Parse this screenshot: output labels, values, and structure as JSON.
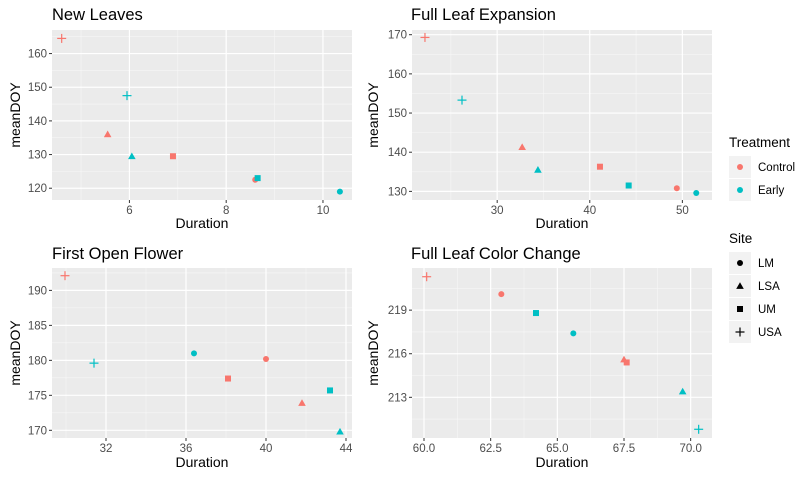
{
  "colors": {
    "Control": "#F8766D",
    "Early": "#00BFC4"
  },
  "legends": {
    "treatment": {
      "title": "Treatment",
      "items": [
        {
          "label": "Control",
          "color": "#F8766D"
        },
        {
          "label": "Early",
          "color": "#00BFC4"
        }
      ]
    },
    "site": {
      "title": "Site",
      "items": [
        {
          "label": "LM",
          "shape": "circle"
        },
        {
          "label": "LSA",
          "shape": "triangle"
        },
        {
          "label": "UM",
          "shape": "square"
        },
        {
          "label": "USA",
          "shape": "plus"
        }
      ]
    }
  },
  "chart_data": [
    {
      "type": "scatter",
      "title": "New Leaves",
      "xlabel": "Duration",
      "ylabel": "meanDOY",
      "xlim": [
        4.4,
        10.6
      ],
      "ylim": [
        116.5,
        167
      ],
      "xticks": [
        6,
        8,
        10
      ],
      "yticks": [
        120,
        130,
        140,
        150,
        160
      ],
      "points": [
        {
          "x": 4.6,
          "y": 164.5,
          "treatment": "Control",
          "site": "USA"
        },
        {
          "x": 5.55,
          "y": 136,
          "treatment": "Control",
          "site": "LSA"
        },
        {
          "x": 5.95,
          "y": 147.5,
          "treatment": "Early",
          "site": "USA"
        },
        {
          "x": 6.05,
          "y": 129.5,
          "treatment": "Early",
          "site": "LSA"
        },
        {
          "x": 6.9,
          "y": 129.5,
          "treatment": "Control",
          "site": "UM"
        },
        {
          "x": 8.6,
          "y": 122.5,
          "treatment": "Control",
          "site": "LM"
        },
        {
          "x": 8.65,
          "y": 123,
          "treatment": "Early",
          "site": "UM"
        },
        {
          "x": 10.35,
          "y": 119,
          "treatment": "Early",
          "site": "LM"
        }
      ]
    },
    {
      "type": "scatter",
      "title": "Full Leaf Expansion",
      "xlabel": "Duration",
      "ylabel": "meanDOY",
      "xlim": [
        20.8,
        53.2
      ],
      "ylim": [
        127.8,
        171.2
      ],
      "xticks": [
        30,
        40,
        50
      ],
      "yticks": [
        130,
        140,
        150,
        160,
        170
      ],
      "points": [
        {
          "x": 22.2,
          "y": 169.3,
          "treatment": "Control",
          "site": "USA"
        },
        {
          "x": 26.2,
          "y": 153.3,
          "treatment": "Early",
          "site": "USA"
        },
        {
          "x": 32.7,
          "y": 141.3,
          "treatment": "Control",
          "site": "LSA"
        },
        {
          "x": 34.4,
          "y": 135.5,
          "treatment": "Early",
          "site": "LSA"
        },
        {
          "x": 41.1,
          "y": 136.3,
          "treatment": "Control",
          "site": "UM"
        },
        {
          "x": 44.2,
          "y": 131.5,
          "treatment": "Early",
          "site": "UM"
        },
        {
          "x": 49.4,
          "y": 130.8,
          "treatment": "Control",
          "site": "LM"
        },
        {
          "x": 51.5,
          "y": 129.6,
          "treatment": "Early",
          "site": "LM"
        }
      ]
    },
    {
      "type": "scatter",
      "title": "First Open Flower",
      "xlabel": "Duration",
      "ylabel": "meanDOY",
      "xlim": [
        29.3,
        44.3
      ],
      "ylim": [
        168.9,
        193.2
      ],
      "xticks": [
        32,
        36,
        40,
        44
      ],
      "yticks": [
        170,
        175,
        180,
        185,
        190
      ],
      "points": [
        {
          "x": 29.95,
          "y": 192.1,
          "treatment": "Control",
          "site": "USA"
        },
        {
          "x": 31.4,
          "y": 179.6,
          "treatment": "Early",
          "site": "USA"
        },
        {
          "x": 36.4,
          "y": 181.0,
          "treatment": "Early",
          "site": "LM"
        },
        {
          "x": 38.1,
          "y": 177.4,
          "treatment": "Control",
          "site": "UM"
        },
        {
          "x": 40.0,
          "y": 180.2,
          "treatment": "Control",
          "site": "LM"
        },
        {
          "x": 41.8,
          "y": 173.9,
          "treatment": "Control",
          "site": "LSA"
        },
        {
          "x": 43.2,
          "y": 175.7,
          "treatment": "Early",
          "site": "UM"
        },
        {
          "x": 43.7,
          "y": 169.8,
          "treatment": "Early",
          "site": "LSA"
        }
      ]
    },
    {
      "type": "scatter",
      "title": "Full Leaf Color Change",
      "xlabel": "Duration",
      "ylabel": "meanDOY",
      "xlim": [
        59.55,
        70.8
      ],
      "ylim": [
        210.2,
        221.9
      ],
      "xticks": [
        60.0,
        62.5,
        65.0,
        67.5,
        70.0
      ],
      "xtick_labels": [
        "60.0",
        "62.5",
        "65.0",
        "67.5",
        "70.0"
      ],
      "yticks": [
        213,
        216,
        219
      ],
      "points": [
        {
          "x": 60.1,
          "y": 221.3,
          "treatment": "Control",
          "site": "USA"
        },
        {
          "x": 62.9,
          "y": 220.1,
          "treatment": "Control",
          "site": "LM"
        },
        {
          "x": 64.2,
          "y": 218.8,
          "treatment": "Early",
          "site": "UM"
        },
        {
          "x": 65.6,
          "y": 217.4,
          "treatment": "Early",
          "site": "LM"
        },
        {
          "x": 67.5,
          "y": 215.6,
          "treatment": "Control",
          "site": "LSA"
        },
        {
          "x": 67.6,
          "y": 215.4,
          "treatment": "Control",
          "site": "UM"
        },
        {
          "x": 69.7,
          "y": 213.4,
          "treatment": "Early",
          "site": "LSA"
        },
        {
          "x": 70.3,
          "y": 210.8,
          "treatment": "Early",
          "site": "USA"
        }
      ]
    }
  ]
}
